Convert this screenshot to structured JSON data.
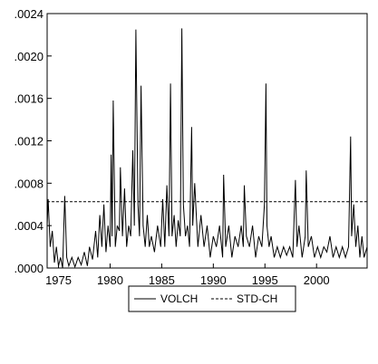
{
  "chart_data": {
    "type": "line",
    "title": "",
    "xlabel": "",
    "ylabel": "",
    "xlim": [
      1973.9,
      2004.9
    ],
    "ylim": [
      0,
      0.0024
    ],
    "x_ticks": [
      1975,
      1980,
      1985,
      1990,
      1995,
      2000
    ],
    "x_tick_labels": [
      "1975",
      "1980",
      "1985",
      "1990",
      "1995",
      "2000"
    ],
    "y_ticks": [
      0,
      0.0004,
      0.0008,
      0.0012,
      0.0016,
      0.002,
      0.0024
    ],
    "y_tick_labels": [
      ".0000",
      ".0004",
      ".0008",
      ".0012",
      ".0016",
      ".0020",
      ".0024"
    ],
    "grid": false,
    "legend_position": "bottom-center",
    "series": [
      {
        "name": "VOLCH",
        "style": "solid",
        "color": "#000000",
        "x": [
          1973.9,
          1974.0,
          1974.2,
          1974.4,
          1974.6,
          1974.8,
          1975.0,
          1975.2,
          1975.4,
          1975.6,
          1975.8,
          1976.0,
          1976.3,
          1976.6,
          1976.9,
          1977.2,
          1977.5,
          1977.8,
          1978.0,
          1978.3,
          1978.6,
          1978.8,
          1979.0,
          1979.2,
          1979.4,
          1979.6,
          1979.8,
          1980.0,
          1980.1,
          1980.2,
          1980.3,
          1980.5,
          1980.7,
          1980.9,
          1981.0,
          1981.2,
          1981.4,
          1981.6,
          1981.8,
          1982.0,
          1982.2,
          1982.35,
          1982.5,
          1982.7,
          1982.85,
          1983.0,
          1983.2,
          1983.4,
          1983.6,
          1983.8,
          1984.0,
          1984.3,
          1984.6,
          1984.9,
          1985.1,
          1985.3,
          1985.5,
          1985.7,
          1985.85,
          1986.0,
          1986.2,
          1986.4,
          1986.6,
          1986.8,
          1986.95,
          1987.1,
          1987.3,
          1987.5,
          1987.7,
          1987.9,
          1988.0,
          1988.2,
          1988.5,
          1988.8,
          1989.1,
          1989.4,
          1989.7,
          1990.0,
          1990.3,
          1990.6,
          1990.9,
          1991.0,
          1991.2,
          1991.5,
          1991.8,
          1992.1,
          1992.4,
          1992.7,
          1992.9,
          1993.0,
          1993.2,
          1993.5,
          1993.8,
          1994.1,
          1994.4,
          1994.7,
          1994.95,
          1995.1,
          1995.2,
          1995.4,
          1995.6,
          1995.9,
          1996.2,
          1996.5,
          1996.8,
          1997.1,
          1997.4,
          1997.7,
          1997.95,
          1998.1,
          1998.3,
          1998.6,
          1998.9,
          1999.0,
          1999.2,
          1999.5,
          1999.8,
          2000.1,
          2000.4,
          2000.7,
          2001.0,
          2001.3,
          2001.6,
          2001.9,
          2002.2,
          2002.5,
          2002.8,
          2003.1,
          2003.3,
          2003.4,
          2003.6,
          2003.8,
          2004.0,
          2004.2,
          2004.4,
          2004.6,
          2004.9
        ],
        "values": [
          0.0004,
          0.00065,
          0.0002,
          0.00035,
          5e-05,
          0.0002,
          2e-05,
          0.0001,
          0.0,
          0.00068,
          0.0001,
          2e-05,
          0.0001,
          1e-05,
          0.0001,
          3e-05,
          0.00015,
          2e-05,
          0.0002,
          8e-05,
          0.00035,
          0.0001,
          0.0005,
          0.0002,
          0.0006,
          0.00015,
          0.0004,
          0.0002,
          0.00107,
          0.0003,
          0.00158,
          0.0002,
          0.0004,
          0.00035,
          0.00095,
          0.0003,
          0.00075,
          0.0002,
          0.0004,
          0.0003,
          0.00111,
          0.0004,
          0.00225,
          0.0006,
          0.0003,
          0.00172,
          0.0004,
          0.0002,
          0.0005,
          0.0002,
          0.0003,
          0.00015,
          0.0004,
          0.0002,
          0.00065,
          0.0002,
          0.00078,
          0.0003,
          0.00174,
          0.0003,
          0.0005,
          0.0002,
          0.00045,
          0.0003,
          0.00226,
          0.0006,
          0.0003,
          0.0004,
          0.0002,
          0.00133,
          0.0004,
          0.0008,
          0.0002,
          0.0005,
          0.0002,
          0.0004,
          0.0001,
          0.0003,
          0.0002,
          0.0004,
          0.0001,
          0.00088,
          0.0002,
          0.0004,
          0.0001,
          0.0003,
          0.0002,
          0.0004,
          0.0002,
          0.00078,
          0.0003,
          0.0002,
          0.0004,
          0.0001,
          0.0003,
          0.0002,
          0.0006,
          0.00174,
          0.0004,
          0.0002,
          0.0003,
          0.0001,
          0.0002,
          0.0001,
          0.0002,
          0.00012,
          0.0002,
          0.0001,
          0.00083,
          0.0002,
          0.0004,
          0.0001,
          0.0003,
          0.00092,
          0.0002,
          0.0003,
          0.0001,
          0.0002,
          0.0001,
          0.0002,
          0.00015,
          0.0003,
          0.0001,
          0.0002,
          0.0001,
          0.0002,
          0.0001,
          0.0002,
          0.00124,
          0.0003,
          0.0006,
          0.0002,
          0.0004,
          0.0001,
          0.0003,
          0.0001,
          0.0002
        ]
      },
      {
        "name": "STD-CH",
        "style": "dashed",
        "color": "#000000",
        "x": [
          1973.9,
          2004.9
        ],
        "values": [
          0.000625,
          0.000625
        ]
      }
    ]
  }
}
